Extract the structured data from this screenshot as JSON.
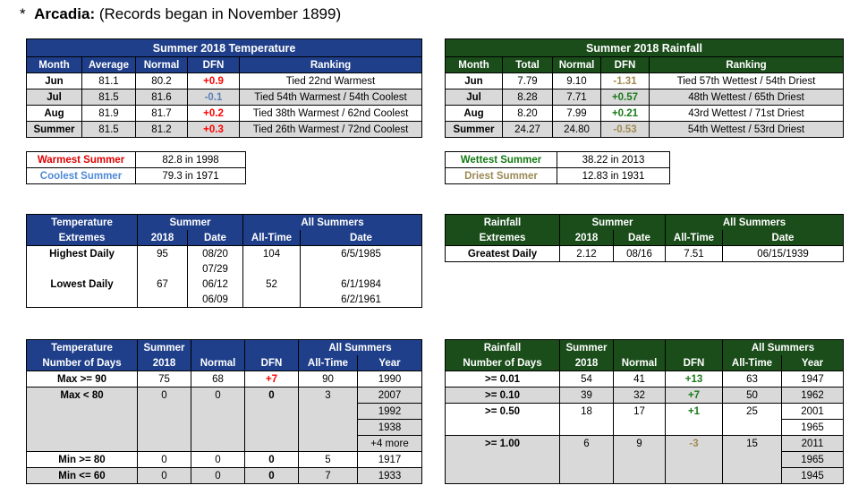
{
  "header": {
    "bullet": "*",
    "station": "Arcadia:",
    "note": "(Records began in November 1899)"
  },
  "temp_summary": {
    "title": "Summer 2018 Temperature",
    "cols": [
      "Month",
      "Average",
      "Normal",
      "DFN",
      "Ranking"
    ],
    "rows": [
      {
        "month": "Jun",
        "avg": "81.1",
        "normal": "80.2",
        "dfn": "+0.9",
        "rank": "Tied 22nd Warmest"
      },
      {
        "month": "Jul",
        "avg": "81.5",
        "normal": "81.6",
        "dfn": "-0.1",
        "rank": "Tied 54th Warmest / 54th Coolest"
      },
      {
        "month": "Aug",
        "avg": "81.9",
        "normal": "81.7",
        "dfn": "+0.2",
        "rank": "Tied 38th Warmest / 62nd Coolest"
      },
      {
        "month": "Summer",
        "avg": "81.5",
        "normal": "81.2",
        "dfn": "+0.3",
        "rank": "Tied 26th Warmest / 72nd Coolest"
      }
    ]
  },
  "rain_summary": {
    "title": "Summer 2018 Rainfall",
    "cols": [
      "Month",
      "Total",
      "Normal",
      "DFN",
      "Ranking"
    ],
    "rows": [
      {
        "month": "Jun",
        "total": "7.79",
        "normal": "9.10",
        "dfn": "-1.31",
        "rank": "Tied 57th Wettest / 54th Driest"
      },
      {
        "month": "Jul",
        "total": "8.28",
        "normal": "7.71",
        "dfn": "+0.57",
        "rank": "48th Wettest / 65th Driest"
      },
      {
        "month": "Aug",
        "total": "8.20",
        "normal": "7.99",
        "dfn": "+0.21",
        "rank": "43rd Wettest / 71st Driest"
      },
      {
        "month": "Summer",
        "total": "24.27",
        "normal": "24.80",
        "dfn": "-0.53",
        "rank": "54th Wettest / 53rd Driest"
      }
    ]
  },
  "temp_records": {
    "warmest_label": "Warmest Summer",
    "warmest_value": "82.8 in 1998",
    "coolest_label": "Coolest Summer",
    "coolest_value": "79.3 in 1971"
  },
  "rain_records": {
    "wettest_label": "Wettest Summer",
    "wettest_value": "38.22 in 2013",
    "driest_label": "Driest Summer",
    "driest_value": "12.83 in 1931"
  },
  "temp_extremes": {
    "h1": "Temperature",
    "h2": "Extremes",
    "summer": "Summer",
    "all_summers": "All Summers",
    "y2018": "2018",
    "date": "Date",
    "alltime": "All-Time",
    "date2": "Date",
    "highest_label": "Highest Daily",
    "highest_val": "95",
    "highest_date": "08/20",
    "highest_date2": "07/29",
    "highest_at": "104",
    "highest_at_date": "6/5/1985",
    "lowest_label": "Lowest Daily",
    "lowest_val": "67",
    "lowest_date": "06/12",
    "lowest_date2": "06/09",
    "lowest_at": "52",
    "lowest_at_date": "6/1/1984",
    "lowest_at_date2": "6/2/1961"
  },
  "rain_extremes": {
    "h1": "Rainfall",
    "h2": "Extremes",
    "summer": "Summer",
    "all_summers": "All Summers",
    "y2018": "2018",
    "date": "Date",
    "alltime": "All-Time",
    "date2": "Date",
    "greatest_label": "Greatest Daily",
    "greatest_val": "2.12",
    "greatest_date": "08/16",
    "greatest_at": "7.51",
    "greatest_at_date": "06/15/1939"
  },
  "temp_days": {
    "h1": "Temperature",
    "h2": "Number of Days",
    "summer": "Summer",
    "y2018": "2018",
    "normal": "Normal",
    "dfn": "DFN",
    "all_summers": "All Summers",
    "alltime": "All-Time",
    "year": "Year",
    "max90_label": "Max >= 90",
    "max90_val": "75",
    "max90_norm": "68",
    "max90_dfn": "+7",
    "max90_at": "90",
    "max90_year": "1990",
    "max80_label": "Max < 80",
    "max80_val": "0",
    "max80_norm": "0",
    "max80_dfn": "0",
    "max80_at": "3",
    "max80_years": [
      "2007",
      "1992",
      "1938",
      "+4 more"
    ],
    "min80_label": "Min >= 80",
    "min80_val": "0",
    "min80_norm": "0",
    "min80_dfn": "0",
    "min80_at": "5",
    "min80_year": "1917",
    "min60_label": "Min <= 60",
    "min60_val": "0",
    "min60_norm": "0",
    "min60_dfn": "0",
    "min60_at": "7",
    "min60_year": "1933"
  },
  "rain_days": {
    "h1": "Rainfall",
    "h2": "Number of Days",
    "summer": "Summer",
    "y2018": "2018",
    "normal": "Normal",
    "dfn": "DFN",
    "all_summers": "All Summers",
    "alltime": "All-Time",
    "year": "Year",
    "r001_label": ">= 0.01",
    "r001_val": "54",
    "r001_norm": "41",
    "r001_dfn": "+13",
    "r001_at": "63",
    "r001_year": "1947",
    "r010_label": ">= 0.10",
    "r010_val": "39",
    "r010_norm": "32",
    "r010_dfn": "+7",
    "r010_at": "50",
    "r010_year": "1962",
    "r050_label": ">= 0.50",
    "r050_val": "18",
    "r050_norm": "17",
    "r050_dfn": "+1",
    "r050_at": "25",
    "r050_years": [
      "2001",
      "1965"
    ],
    "r100_label": ">= 1.00",
    "r100_val": "6",
    "r100_norm": "9",
    "r100_dfn": "-3",
    "r100_at": "15",
    "r100_years": [
      "2011",
      "1965",
      "1945"
    ]
  }
}
